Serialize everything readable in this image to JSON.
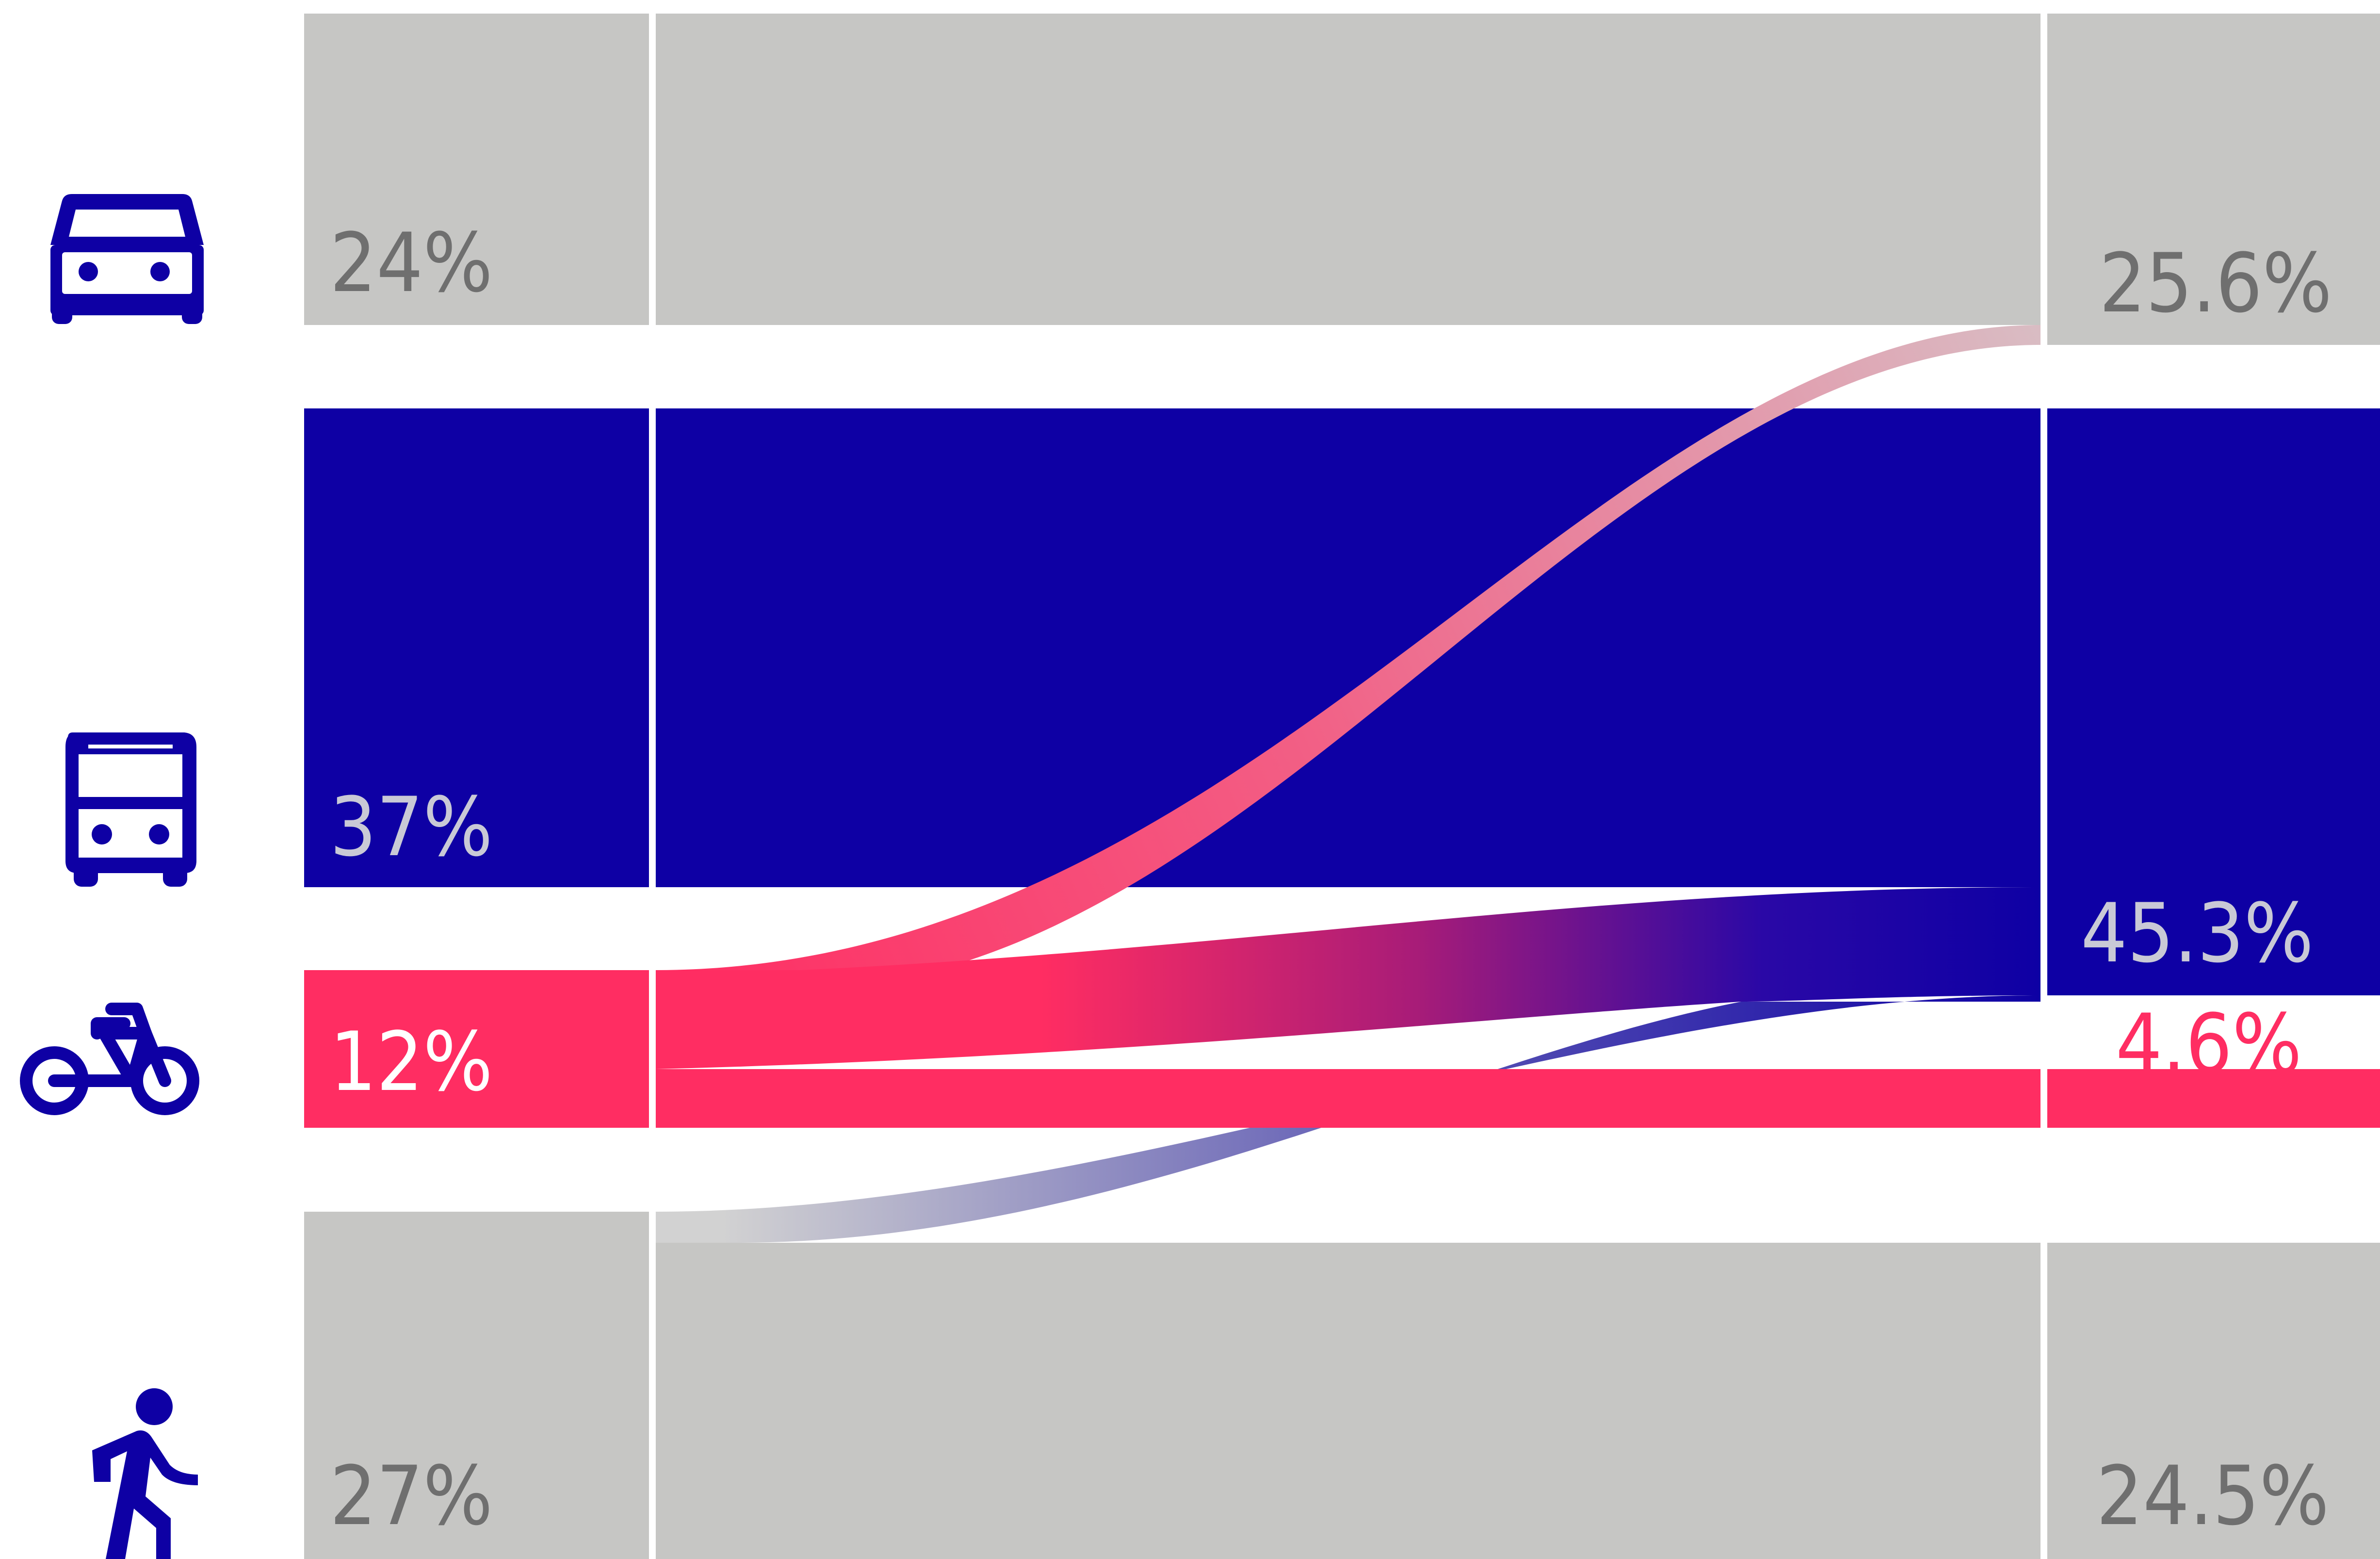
{
  "chart_data": {
    "type": "sankey",
    "title": "",
    "modes": [
      {
        "key": "car",
        "icon": "car-icon",
        "color": "#c6c6c4",
        "label_color": "#6f6f6f",
        "start_label": "24%",
        "start_value": 24,
        "end_label": "25.6%",
        "end_value": 25.6
      },
      {
        "key": "bus",
        "icon": "bus-icon",
        "color": "#0e00a4",
        "label_color": "#c9c9d6",
        "start_label": "37%",
        "start_value": 37,
        "end_label": "45.3%",
        "end_value": 45.3
      },
      {
        "key": "bike",
        "icon": "bicycle-icon",
        "color": "#ff2d62",
        "label_color": "#ffffff",
        "end_label_color": "#ff2d62",
        "start_label": "12%",
        "start_value": 12,
        "end_label": "4.6%",
        "end_value": 4.6
      },
      {
        "key": "walk",
        "icon": "pedestrian-icon",
        "color": "#c6c6c4",
        "label_color": "#6f6f6f",
        "start_label": "27%",
        "start_value": 27,
        "end_label": "24.5%",
        "end_value": 24.5
      }
    ],
    "flows": [
      {
        "from": "bike",
        "to": "car"
      },
      {
        "from": "bike",
        "to": "bus"
      },
      {
        "from": "walk",
        "to": "bus"
      }
    ]
  }
}
